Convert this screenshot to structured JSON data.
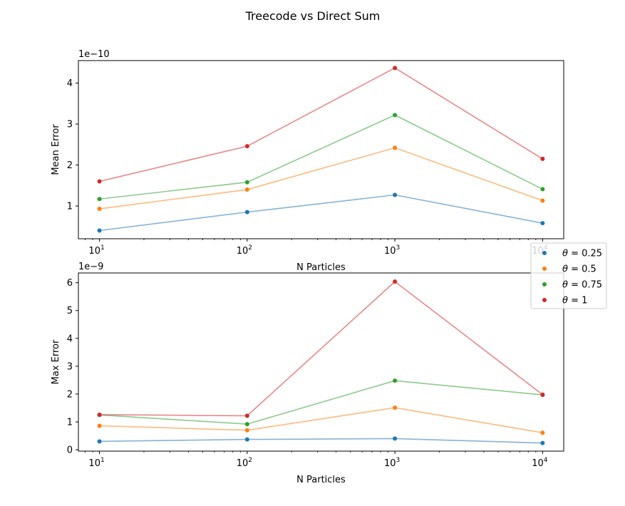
{
  "figure": {
    "title": "Treecode vs Direct Sum"
  },
  "legend": {
    "placement": "right, between subplots",
    "entries": [
      {
        "label_prefix": "θ",
        "label_value": " = 0.25",
        "color": "#1f77b4"
      },
      {
        "label_prefix": "θ",
        "label_value": " = 0.5",
        "color": "#ff7f0e"
      },
      {
        "label_prefix": "θ",
        "label_value": " = 0.75",
        "color": "#2ca02c"
      },
      {
        "label_prefix": "θ",
        "label_value": " = 1",
        "color": "#d62728"
      }
    ]
  },
  "chart_data": [
    {
      "type": "line",
      "xscale": "log",
      "x": [
        10,
        100,
        1000,
        10000
      ],
      "xticks": [
        "10^1",
        "10^2",
        "10^3",
        "10^4"
      ],
      "xlabel": "N Particles",
      "ylabel": "Mean Error",
      "offset_text": "1e−10",
      "ylim": [
        0.2,
        4.55
      ],
      "yticks": [
        1,
        2,
        3,
        4
      ],
      "ytick_labels": [
        "1",
        "2",
        "3",
        "4"
      ],
      "grid": false,
      "series": [
        {
          "name": "θ = 0.25",
          "color": "#1f77b4",
          "values": [
            0.4,
            0.85,
            1.27,
            0.58
          ]
        },
        {
          "name": "θ = 0.5",
          "color": "#ff7f0e",
          "values": [
            0.93,
            1.4,
            2.42,
            1.13
          ]
        },
        {
          "name": "θ = 0.75",
          "color": "#2ca02c",
          "values": [
            1.17,
            1.58,
            3.22,
            1.41
          ]
        },
        {
          "name": "θ = 1",
          "color": "#d62728",
          "values": [
            1.6,
            2.46,
            4.37,
            2.15
          ]
        }
      ]
    },
    {
      "type": "line",
      "xscale": "log",
      "x": [
        10,
        100,
        1000,
        10000
      ],
      "xticks": [
        "10^1",
        "10^2",
        "10^3",
        "10^4"
      ],
      "xlabel": "N Particles",
      "ylabel": "Max Error",
      "offset_text": "1e−9",
      "ylim": [
        -0.05,
        6.35
      ],
      "yticks": [
        0,
        1,
        2,
        3,
        4,
        5,
        6
      ],
      "ytick_labels": [
        "0",
        "1",
        "2",
        "3",
        "4",
        "5",
        "6"
      ],
      "grid": false,
      "series": [
        {
          "name": "θ = 0.25",
          "color": "#1f77b4",
          "values": [
            0.3,
            0.37,
            0.4,
            0.24
          ]
        },
        {
          "name": "θ = 0.5",
          "color": "#ff7f0e",
          "values": [
            0.86,
            0.7,
            1.51,
            0.61
          ]
        },
        {
          "name": "θ = 0.75",
          "color": "#2ca02c",
          "values": [
            1.25,
            0.92,
            2.48,
            1.97
          ]
        },
        {
          "name": "θ = 1",
          "color": "#d62728",
          "values": [
            1.26,
            1.22,
            6.04,
            1.98
          ]
        }
      ]
    }
  ]
}
